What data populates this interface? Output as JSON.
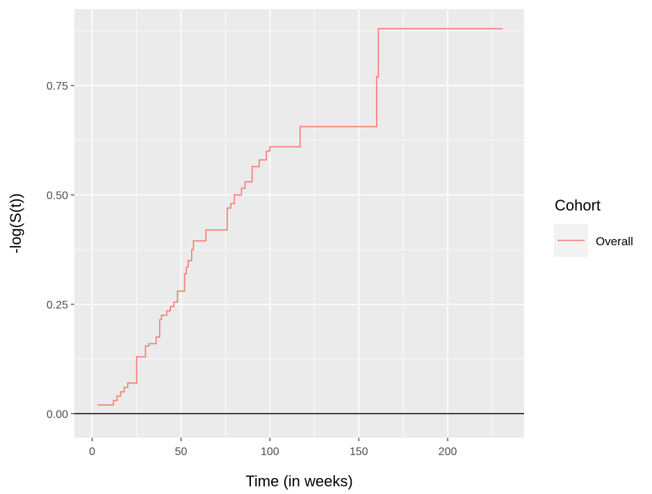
{
  "chart_data": {
    "type": "line",
    "line_style": "step",
    "xlabel": "Time (in weeks)",
    "ylabel": "-log(S(t))",
    "xlim": [
      -10,
      243
    ],
    "ylim": [
      -0.055,
      0.925
    ],
    "x_ticks": [
      0,
      50,
      100,
      150,
      200
    ],
    "x_tick_labels": [
      "0",
      "50",
      "100",
      "150",
      "200"
    ],
    "y_ticks": [
      0,
      0.25,
      0.5,
      0.75
    ],
    "y_tick_labels": [
      "0.00",
      "0.25",
      "0.50",
      "0.75"
    ],
    "grid": true,
    "reference_line_y": 0,
    "legend": {
      "title": "Cohort",
      "position": "right"
    },
    "series": [
      {
        "name": "Overall",
        "color": "#f8766d",
        "x": [
          3,
          10,
          12,
          14,
          16,
          18,
          20,
          22,
          25,
          26,
          30,
          32,
          36,
          38,
          39,
          42,
          44,
          46,
          48,
          50,
          52,
          53,
          54,
          56,
          57,
          62,
          64,
          75,
          76,
          78,
          80,
          84,
          86,
          90,
          94,
          98,
          100,
          115,
          117,
          159,
          160,
          161,
          231
        ],
        "y": [
          0.02,
          0.02,
          0.03,
          0.04,
          0.05,
          0.06,
          0.07,
          0.07,
          0.13,
          0.13,
          0.155,
          0.16,
          0.175,
          0.215,
          0.225,
          0.235,
          0.245,
          0.255,
          0.28,
          0.28,
          0.32,
          0.335,
          0.35,
          0.375,
          0.395,
          0.395,
          0.42,
          0.42,
          0.47,
          0.48,
          0.5,
          0.515,
          0.53,
          0.565,
          0.58,
          0.6,
          0.61,
          0.61,
          0.656,
          0.656,
          0.77,
          0.88,
          0.88
        ]
      }
    ]
  }
}
